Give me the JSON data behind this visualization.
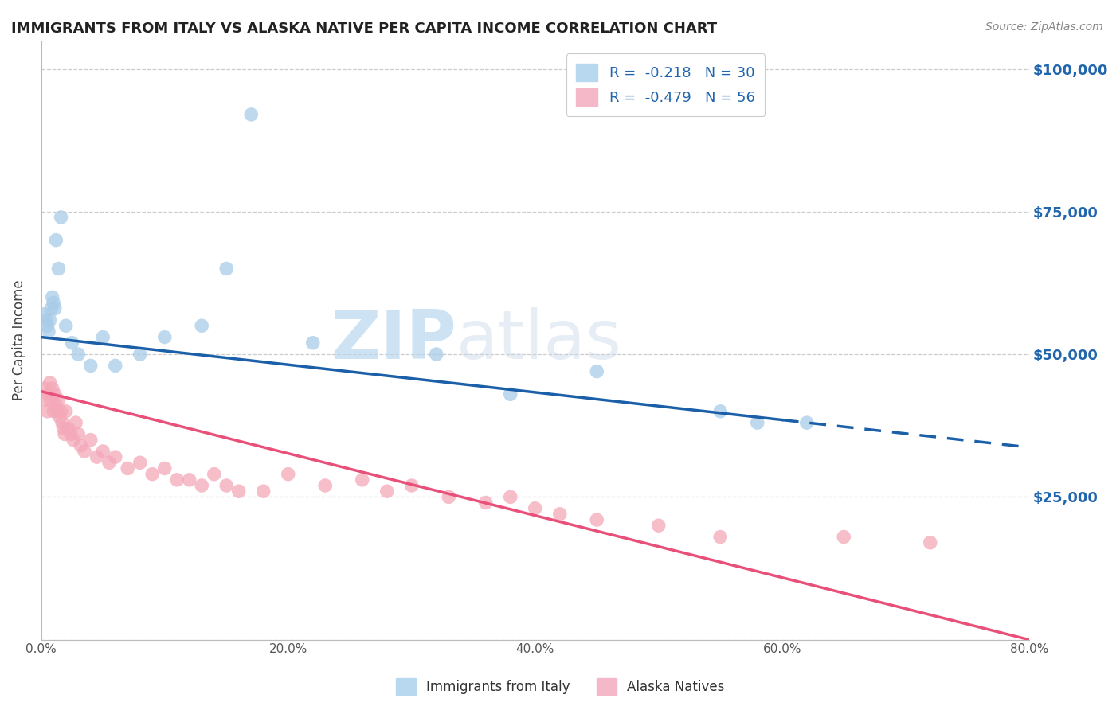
{
  "title": "IMMIGRANTS FROM ITALY VS ALASKA NATIVE PER CAPITA INCOME CORRELATION CHART",
  "source": "Source: ZipAtlas.com",
  "ylabel": "Per Capita Income",
  "xlabel_ticks": [
    "0.0%",
    "20.0%",
    "40.0%",
    "60.0%",
    "80.0%"
  ],
  "xlabel_values": [
    0.0,
    20.0,
    40.0,
    60.0,
    80.0
  ],
  "ylabel_ticks": [
    0,
    25000,
    50000,
    75000,
    100000
  ],
  "ylabel_labels": [
    "",
    "$25,000",
    "$50,000",
    "$75,000",
    "$100,000"
  ],
  "xlim": [
    0,
    80
  ],
  "ylim": [
    0,
    105000
  ],
  "blue_r": -0.218,
  "blue_n": 30,
  "pink_r": -0.479,
  "pink_n": 56,
  "blue_color": "#a8cce8",
  "pink_color": "#f4a8b8",
  "blue_line_color": "#1a5fa8",
  "pink_line_color": "#e8507a",
  "legend_label_blue": "Immigrants from Italy",
  "legend_label_pink": "Alaska Natives",
  "watermark_zip": "ZIP",
  "watermark_atlas": "atlas",
  "background_color": "#ffffff",
  "grid_color": "#cccccc",
  "blue_scatter_x": [
    0.2,
    0.4,
    0.5,
    0.6,
    0.7,
    0.8,
    0.9,
    1.0,
    1.1,
    1.2,
    1.4,
    1.6,
    2.0,
    2.5,
    3.0,
    4.0,
    5.0,
    6.0,
    8.0,
    10.0,
    13.0,
    15.0,
    17.0,
    22.0,
    32.0,
    38.0,
    45.0,
    55.0,
    58.0,
    62.0
  ],
  "blue_scatter_y": [
    57000,
    56000,
    55000,
    54000,
    56000,
    58000,
    60000,
    59000,
    58000,
    70000,
    65000,
    74000,
    55000,
    52000,
    50000,
    48000,
    53000,
    48000,
    50000,
    53000,
    55000,
    65000,
    92000,
    52000,
    50000,
    43000,
    47000,
    40000,
    38000,
    38000
  ],
  "pink_scatter_x": [
    0.3,
    0.4,
    0.5,
    0.6,
    0.7,
    0.8,
    0.9,
    1.0,
    1.1,
    1.2,
    1.3,
    1.4,
    1.5,
    1.6,
    1.7,
    1.8,
    1.9,
    2.0,
    2.2,
    2.4,
    2.6,
    2.8,
    3.0,
    3.2,
    3.5,
    4.0,
    4.5,
    5.0,
    5.5,
    6.0,
    7.0,
    8.0,
    9.0,
    10.0,
    11.0,
    12.0,
    13.0,
    14.0,
    15.0,
    16.0,
    18.0,
    20.0,
    23.0,
    26.0,
    28.0,
    30.0,
    33.0,
    36.0,
    38.0,
    40.0,
    42.0,
    45.0,
    50.0,
    55.0,
    65.0,
    72.0
  ],
  "pink_scatter_y": [
    44000,
    42000,
    40000,
    43000,
    45000,
    42000,
    44000,
    40000,
    43000,
    41000,
    40000,
    42000,
    39000,
    40000,
    38000,
    37000,
    36000,
    40000,
    37000,
    36000,
    35000,
    38000,
    36000,
    34000,
    33000,
    35000,
    32000,
    33000,
    31000,
    32000,
    30000,
    31000,
    29000,
    30000,
    28000,
    28000,
    27000,
    29000,
    27000,
    26000,
    26000,
    29000,
    27000,
    28000,
    26000,
    27000,
    25000,
    24000,
    25000,
    23000,
    22000,
    21000,
    20000,
    18000,
    18000,
    17000
  ],
  "blue_line_x0": 0,
  "blue_line_y0": 53000,
  "blue_line_x1": 60,
  "blue_line_y1": 38500,
  "blue_dash_x0": 60,
  "blue_dash_y0": 38500,
  "blue_dash_x1": 80,
  "blue_dash_y1": 33700,
  "pink_line_x0": 0,
  "pink_line_y0": 43500,
  "pink_line_x1": 80,
  "pink_line_y1": 0
}
